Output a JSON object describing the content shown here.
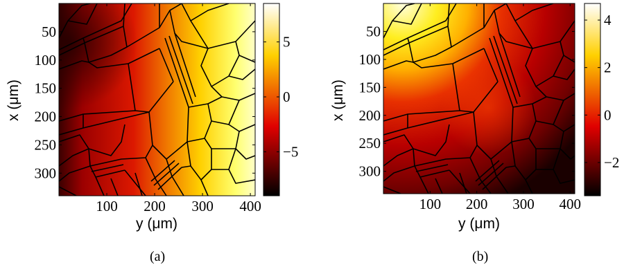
{
  "figure": {
    "panels": [
      {
        "caption": "(a)",
        "xlabel": "y (μm)",
        "ylabel": "x (μm)",
        "x_ticks": [
          "100",
          "200",
          "300",
          "400"
        ],
        "y_ticks": [
          "50",
          "100",
          "150",
          "200",
          "250",
          "300"
        ],
        "colorbar_ticks": [
          "5",
          "0",
          "−5"
        ]
      },
      {
        "caption": "(b)",
        "xlabel": "y (μm)",
        "ylabel": "x (μm)",
        "x_ticks": [
          "100",
          "200",
          "300",
          "400"
        ],
        "y_ticks": [
          "50",
          "100",
          "150",
          "200",
          "250",
          "300"
        ],
        "colorbar_ticks": [
          "4",
          "2",
          "0",
          "−2"
        ]
      }
    ]
  },
  "chart_data": [
    {
      "type": "heatmap",
      "title": "",
      "xlabel": "y (μm)",
      "ylabel": "x (μm)",
      "x_range": [
        0,
        410
      ],
      "y_range": [
        0,
        340
      ],
      "y_axis_inverted": true,
      "x_ticks": [
        100,
        200,
        300,
        400
      ],
      "y_ticks": [
        50,
        100,
        150,
        200,
        250,
        300
      ],
      "colorbar": {
        "range": [
          -9,
          8.5
        ],
        "ticks": [
          5,
          0,
          -5
        ],
        "colormap": "hot"
      },
      "field_description": "field increases from left (low, dark) to right (high, bright); grain-boundary network overlaid in black",
      "overlay": "grain boundaries",
      "grid": false
    },
    {
      "type": "heatmap",
      "title": "",
      "xlabel": "y (μm)",
      "ylabel": "x (μm)",
      "x_range": [
        0,
        410
      ],
      "y_range": [
        0,
        340
      ],
      "y_axis_inverted": true,
      "x_ticks": [
        100,
        200,
        300,
        400
      ],
      "y_ticks": [
        50,
        100,
        150,
        200,
        250,
        300
      ],
      "colorbar": {
        "range": [
          -3.4,
          4.7
        ],
        "ticks": [
          4,
          2,
          0,
          -2
        ],
        "colormap": "hot"
      },
      "field_description": "field highest at top-left, decreasing toward bottom-right; grain-boundary network overlaid in black",
      "overlay": "grain boundaries",
      "grid": false
    }
  ]
}
